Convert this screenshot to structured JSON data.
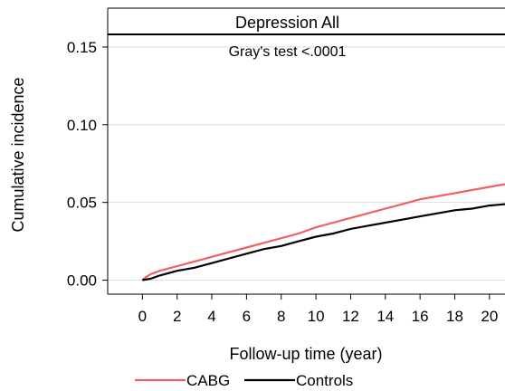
{
  "chart_data": {
    "type": "line",
    "title": "Depression All",
    "annotation": "Gray's test <.0001",
    "xlabel": "Follow-up time (year)",
    "ylabel": "Cumulative incidence",
    "xlim": [
      -2,
      21
    ],
    "ylim": [
      -0.009,
      0.175
    ],
    "x_ticks": [
      0,
      2,
      4,
      6,
      8,
      10,
      12,
      14,
      16,
      18,
      20
    ],
    "y_ticks": [
      0.0,
      0.05,
      0.1,
      0.15
    ],
    "y_tick_labels": [
      "0.00",
      "0.05",
      "0.10",
      "0.15"
    ],
    "grid": true,
    "legend_position": "bottom",
    "series": [
      {
        "name": "CABG",
        "color": "#f0605f",
        "x": [
          0,
          0.2,
          0.5,
          1,
          2,
          3,
          4,
          5,
          6,
          7,
          8,
          9,
          10,
          11,
          12,
          13,
          14,
          15,
          16,
          17,
          18,
          19,
          20,
          21
        ],
        "y": [
          0.0,
          0.002,
          0.004,
          0.006,
          0.009,
          0.012,
          0.015,
          0.018,
          0.021,
          0.024,
          0.027,
          0.03,
          0.034,
          0.037,
          0.04,
          0.043,
          0.046,
          0.049,
          0.052,
          0.054,
          0.056,
          0.058,
          0.06,
          0.062
        ]
      },
      {
        "name": "Controls",
        "color": "#000000",
        "x": [
          0,
          0.5,
          1,
          2,
          3,
          4,
          5,
          6,
          7,
          8,
          9,
          10,
          11,
          12,
          13,
          14,
          15,
          16,
          17,
          18,
          19,
          20,
          21
        ],
        "y": [
          0.0,
          0.001,
          0.003,
          0.006,
          0.008,
          0.011,
          0.014,
          0.017,
          0.02,
          0.022,
          0.025,
          0.028,
          0.03,
          0.033,
          0.035,
          0.037,
          0.039,
          0.041,
          0.043,
          0.045,
          0.046,
          0.048,
          0.049
        ]
      }
    ]
  }
}
